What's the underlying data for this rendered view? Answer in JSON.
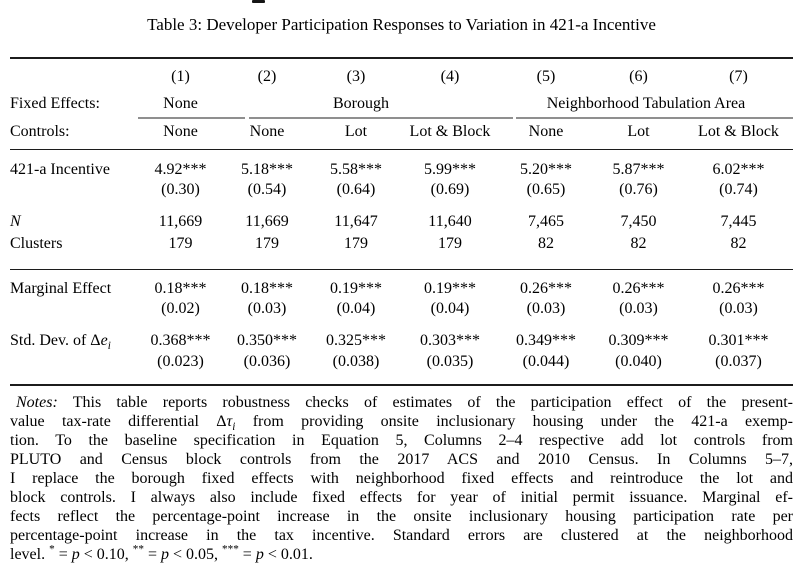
{
  "title": "Table 3: Developer Participation Responses to Variation in 421-a Incentive",
  "colors": {
    "text": "#000000",
    "rule_heavy": "#1c1c1c",
    "rule_group": "#8f8f8f",
    "background": "#ffffff"
  },
  "header": {
    "column_numbers": [
      "(1)",
      "(2)",
      "(3)",
      "(4)",
      "(5)",
      "(6)",
      "(7)"
    ],
    "fixed_effects_label": "Fixed Effects:",
    "fixed_effects_groups": [
      "None",
      "Borough",
      "Neighborhood Tabulation Area"
    ],
    "controls_label": "Controls:",
    "controls": [
      "None",
      "None",
      "Lot",
      "Lot & Block",
      "None",
      "Lot",
      "Lot & Block"
    ]
  },
  "chart_data": {
    "type": "table",
    "title": "Table 3: Developer Participation Responses to Variation in 421-a Incentive",
    "columns": [
      "(1)",
      "(2)",
      "(3)",
      "(4)",
      "(5)",
      "(6)",
      "(7)"
    ],
    "fixed_effects": [
      "None",
      "Borough",
      "Borough",
      "Borough",
      "Neighborhood Tabulation Area",
      "Neighborhood Tabulation Area",
      "Neighborhood Tabulation Area"
    ],
    "controls": [
      "None",
      "None",
      "Lot",
      "Lot & Block",
      "None",
      "Lot",
      "Lot & Block"
    ],
    "rows": [
      {
        "label": "421-a Incentive",
        "values": [
          4.92,
          5.18,
          5.58,
          5.99,
          5.2,
          5.87,
          6.02
        ],
        "se": [
          0.3,
          0.54,
          0.64,
          0.69,
          0.65,
          0.76,
          0.74
        ]
      },
      {
        "label": "N",
        "values": [
          11669,
          11669,
          11647,
          11640,
          7465,
          7450,
          7445
        ]
      },
      {
        "label": "Clusters",
        "values": [
          179,
          179,
          179,
          179,
          82,
          82,
          82
        ]
      },
      {
        "label": "Marginal Effect",
        "values": [
          0.18,
          0.18,
          0.19,
          0.19,
          0.26,
          0.26,
          0.26
        ],
        "se": [
          0.02,
          0.03,
          0.04,
          0.04,
          0.03,
          0.03,
          0.03
        ]
      },
      {
        "label": "Std. Dev. of Δe_i",
        "values": [
          0.368,
          0.35,
          0.325,
          0.303,
          0.349,
          0.309,
          0.301
        ],
        "se": [
          0.023,
          0.036,
          0.038,
          0.035,
          0.044,
          0.04,
          0.037
        ]
      }
    ]
  },
  "body": {
    "incentive": {
      "label": "421-a Incentive",
      "values": [
        "4.92***",
        "5.18***",
        "5.58***",
        "5.99***",
        "5.20***",
        "5.87***",
        "6.02***"
      ],
      "se": [
        "(0.30)",
        "(0.54)",
        "(0.64)",
        "(0.69)",
        "(0.65)",
        "(0.76)",
        "(0.74)"
      ]
    },
    "n": {
      "label": "N",
      "values": [
        "11,669",
        "11,669",
        "11,647",
        "11,640",
        "7,465",
        "7,450",
        "7,445"
      ]
    },
    "clusters": {
      "label": "Clusters",
      "values": [
        "179",
        "179",
        "179",
        "179",
        "82",
        "82",
        "82"
      ]
    },
    "marginal": {
      "label": "Marginal Effect",
      "values": [
        "0.18***",
        "0.18***",
        "0.19***",
        "0.19***",
        "0.26***",
        "0.26***",
        "0.26***"
      ],
      "se": [
        "(0.02)",
        "(0.03)",
        "(0.04)",
        "(0.04)",
        "(0.03)",
        "(0.03)",
        "(0.03)"
      ]
    },
    "stddev": {
      "label_rich": [
        {
          "t": "Std. Dev. of Δ"
        },
        {
          "t": "e",
          "i": true
        },
        {
          "t": "i",
          "i": true,
          "sub": true
        }
      ],
      "values": [
        "0.368***",
        "0.350***",
        "0.325***",
        "0.303***",
        "0.349***",
        "0.309***",
        "0.301***"
      ],
      "se": [
        "(0.023)",
        "(0.036)",
        "(0.038)",
        "(0.035)",
        "(0.044)",
        "(0.040)",
        "(0.037)"
      ]
    }
  },
  "notes": {
    "lines": [
      [
        {
          "t": "Notes:",
          "i": true
        },
        {
          "t": " This table reports robustness checks of estimates of the participation effect of the present-"
        }
      ],
      [
        {
          "t": "value tax-rate differential Δ"
        },
        {
          "t": "τ",
          "i": true
        },
        {
          "t": "i",
          "i": true,
          "sub": true
        },
        {
          "t": " from providing onsite inclusionary housing under the 421-a exemp-"
        }
      ],
      [
        {
          "t": "tion. To the baseline specification in Equation 5, Columns 2–4 respective add lot controls from"
        }
      ],
      [
        {
          "t": "PLUTO and Census block controls from the 2017 ACS and 2010 Census. In Columns 5–7,"
        }
      ],
      [
        {
          "t": "I replace the borough fixed effects with neighborhood fixed effects and reintroduce the lot and"
        }
      ],
      [
        {
          "t": "block controls. I always also include fixed effects for year of initial permit issuance. Marginal ef-"
        }
      ],
      [
        {
          "t": "fects reflect the percentage-point increase in the onsite inclusionary housing participation rate per"
        }
      ],
      [
        {
          "t": "percentage-point increase in the tax incentive. Standard errors are clustered at the neighborhood"
        }
      ],
      [
        {
          "t": "level. "
        },
        {
          "t": "*",
          "sup": true
        },
        {
          "t": " = "
        },
        {
          "t": "p",
          "i": true
        },
        {
          "t": " < 0.10, "
        },
        {
          "t": "**",
          "sup": true
        },
        {
          "t": " = "
        },
        {
          "t": "p",
          "i": true
        },
        {
          "t": " < 0.05, "
        },
        {
          "t": "***",
          "sup": true
        },
        {
          "t": " = "
        },
        {
          "t": "p",
          "i": true
        },
        {
          "t": " < 0.01."
        }
      ]
    ]
  }
}
